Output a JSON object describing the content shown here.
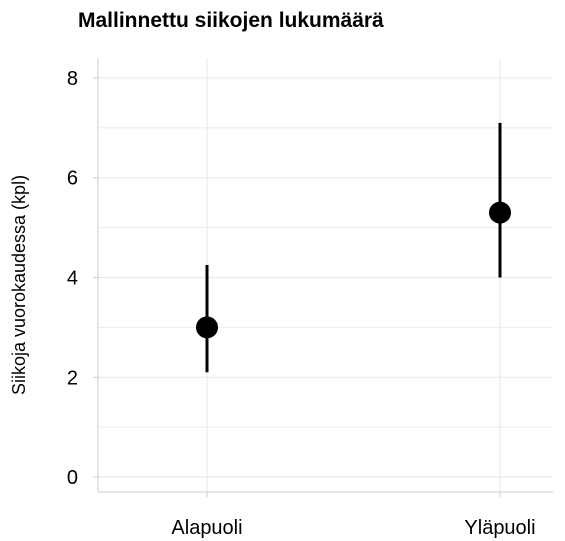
{
  "chart_data": {
    "type": "scatter",
    "title": "Mallinnettu siikojen lukumäärä",
    "xlabel": "",
    "ylabel": "Siikoja vuorokaudessa (kpl)",
    "categories": [
      "Alapuoli",
      "Yläpuoli"
    ],
    "series": [
      {
        "values": [
          3.0,
          5.3
        ],
        "lower": [
          2.1,
          4.0
        ],
        "upper": [
          4.25,
          7.1
        ]
      }
    ],
    "ylim": [
      -0.3,
      8.4
    ],
    "yticks": [
      0,
      2,
      4,
      6,
      8
    ],
    "grid": true,
    "colors": {
      "point": "#000000",
      "grid": "#ebebeb",
      "axis": "#cccccc"
    }
  }
}
